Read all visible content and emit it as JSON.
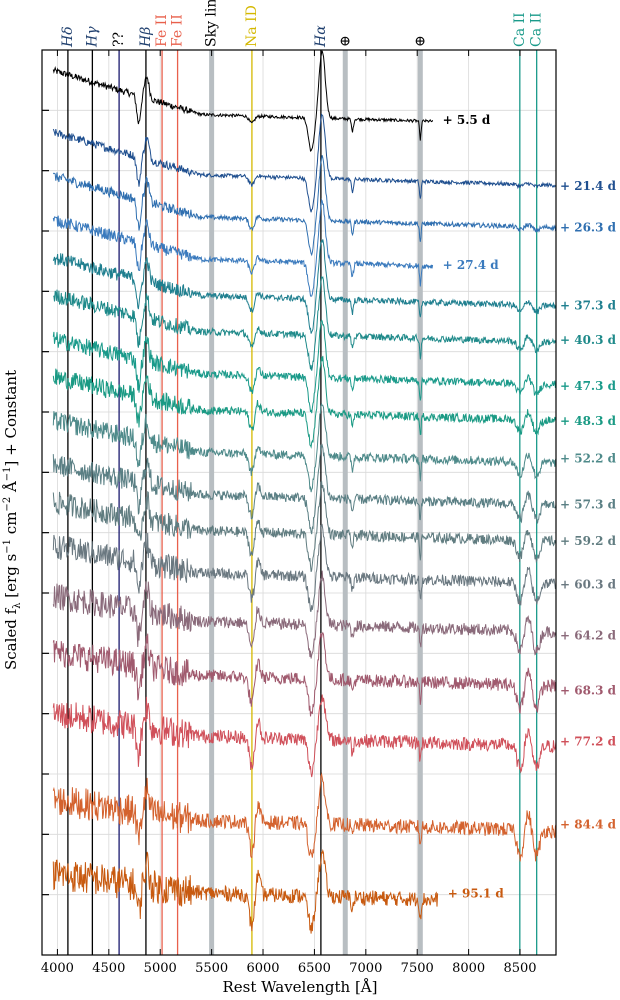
{
  "chart_data": {
    "type": "line",
    "title": "",
    "xlabel": "Rest Wavelength [Å]",
    "ylabel": "Scaled f",
    "ylabel_sub": "λ",
    "ylabel_units_pre": " [erg s",
    "ylabel_units_sup1": "−1",
    "ylabel_units_mid": " cm",
    "ylabel_units_sup2": "−2",
    "ylabel_units_mid2": " Å",
    "ylabel_units_sup3": "−1",
    "ylabel_units_post": "] + Constant",
    "xlim": [
      3850,
      8850
    ],
    "x_ticks": [
      4000,
      4500,
      5000,
      5500,
      6000,
      6500,
      7000,
      7500,
      8000,
      8500
    ],
    "x_tick_labels": [
      "4000",
      "4500",
      "5000",
      "5500",
      "6000",
      "6500",
      "7000",
      "7500",
      "8000",
      "8500"
    ],
    "grid": true,
    "line_markers": [
      {
        "label": "Hδ",
        "x": 4102,
        "color": "#000000",
        "label_color": "#1f3f6e",
        "style": "line",
        "italic": true
      },
      {
        "label": "Hγ",
        "x": 4340,
        "color": "#000000",
        "label_color": "#1f3f6e",
        "style": "line",
        "italic": true
      },
      {
        "label": "??",
        "x": 4600,
        "color": "#1a1a6e",
        "label_color": "#000000",
        "style": "line",
        "italic": false
      },
      {
        "label": "Hβ",
        "x": 4861,
        "color": "#000000",
        "label_color": "#1f3f6e",
        "style": "line",
        "italic": true
      },
      {
        "label": "Fe II",
        "x": 5018,
        "color": "#e8604c",
        "label_color": "#e8604c",
        "style": "line",
        "italic": false
      },
      {
        "label": "Fe II",
        "x": 5169,
        "color": "#e8604c",
        "label_color": "#e8604c",
        "style": "line",
        "italic": false
      },
      {
        "label": "Sky line",
        "x": 5500,
        "color": "#b8bec2",
        "label_color": "#000000",
        "style": "band",
        "italic": false
      },
      {
        "label": "Na ID",
        "x": 5892,
        "color": "#d4b800",
        "label_color": "#d4b800",
        "style": "line",
        "italic": false
      },
      {
        "label": "Hα",
        "x": 6563,
        "color": "#000000",
        "label_color": "#1f3f6e",
        "style": "line",
        "italic": true
      },
      {
        "label": "⊕",
        "x": 6800,
        "color": "#b8bec2",
        "label_color": "#000000",
        "style": "band",
        "italic": false
      },
      {
        "label": "⊕",
        "x": 7530,
        "color": "#b8bec2",
        "label_color": "#000000",
        "style": "band",
        "italic": false
      },
      {
        "label": "Ca II",
        "x": 8498,
        "color": "#1a9a8a",
        "label_color": "#1a9a8a",
        "style": "line",
        "italic": false
      },
      {
        "label": "Ca II",
        "x": 8662,
        "color": "#1a9a8a",
        "label_color": "#1a9a8a",
        "style": "line",
        "italic": false
      }
    ],
    "series": [
      {
        "name": "+ 5.5 d",
        "color": "#000000",
        "offset": 13.9,
        "x_end": 7650
      },
      {
        "name": "+ 21.4 d",
        "color": "#1f4f8f",
        "offset": 12.9,
        "x_end": 8850
      },
      {
        "name": "+ 26.3 d",
        "color": "#2f6fb0",
        "offset": 12.2,
        "x_end": 8850
      },
      {
        "name": "+ 27.4 d",
        "color": "#3a7abd",
        "offset": 11.5,
        "x_end": 7650
      },
      {
        "name": "+ 37.3 d",
        "color": "#1f7f8f",
        "offset": 10.9,
        "x_end": 8850
      },
      {
        "name": "+ 40.3 d",
        "color": "#1f8a8a",
        "offset": 10.3,
        "x_end": 8850
      },
      {
        "name": "+ 47.3 d",
        "color": "#1a9a8a",
        "offset": 9.6,
        "x_end": 8850
      },
      {
        "name": "+ 48.3 d",
        "color": "#1a9a84",
        "offset": 9.0,
        "x_end": 8850
      },
      {
        "name": "+ 52.2 d",
        "color": "#4e8a8a",
        "offset": 8.3,
        "x_end": 8850
      },
      {
        "name": "+ 57.3 d",
        "color": "#5a7f84",
        "offset": 7.6,
        "x_end": 8850
      },
      {
        "name": "+ 59.2 d",
        "color": "#607c80",
        "offset": 7.0,
        "x_end": 8850
      },
      {
        "name": "+ 60.3 d",
        "color": "#6a7880",
        "offset": 6.3,
        "x_end": 8850
      },
      {
        "name": "+ 64.2 d",
        "color": "#8a6a7a",
        "offset": 5.5,
        "x_end": 8850
      },
      {
        "name": "+ 68.3 d",
        "color": "#a05a6e",
        "offset": 4.6,
        "x_end": 8850
      },
      {
        "name": "+ 77.2 d",
        "color": "#d0505a",
        "offset": 3.6,
        "x_end": 8850
      },
      {
        "name": "+ 84.4 d",
        "color": "#d4622e",
        "offset": 2.2,
        "x_end": 8850
      },
      {
        "name": "+ 95.1 d",
        "color": "#c85a10",
        "offset": 1.0,
        "x_end": 7700
      }
    ],
    "ylim": [
      0,
      15
    ]
  }
}
